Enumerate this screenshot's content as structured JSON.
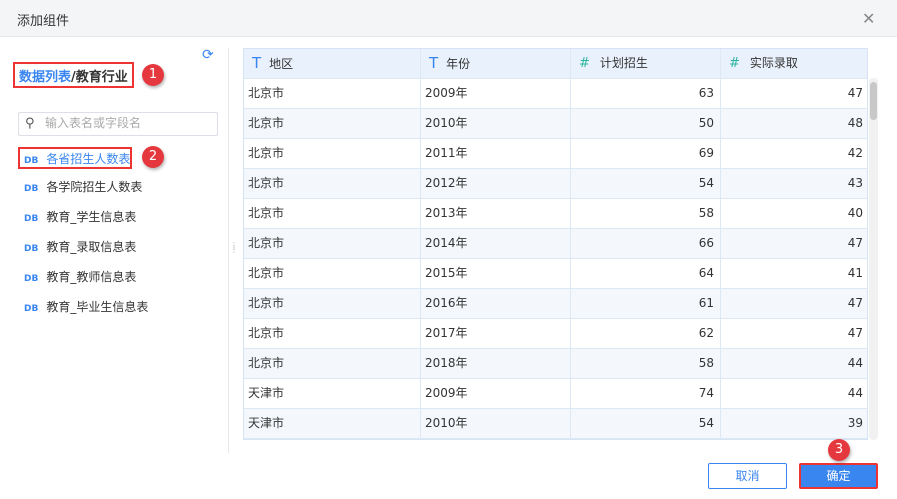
{
  "dialog": {
    "title": "添加组件",
    "close_icon": "close-icon"
  },
  "left": {
    "breadcrumb": {
      "root": "数据列表",
      "separator": "/",
      "current": "教育行业"
    },
    "search_placeholder": "输入表名或字段名",
    "tables": [
      {
        "type": "DB",
        "name": "各省招生人数表",
        "selected": true
      },
      {
        "type": "DB",
        "name": "各学院招生人数表"
      },
      {
        "type": "DB",
        "name": "教育_学生信息表"
      },
      {
        "type": "DB",
        "name": "教育_录取信息表"
      },
      {
        "type": "DB",
        "name": "教育_教师信息表"
      },
      {
        "type": "DB",
        "name": "教育_毕业生信息表"
      }
    ]
  },
  "annotations": [
    "1",
    "2",
    "3"
  ],
  "table": {
    "columns": [
      {
        "type_icon": "T",
        "label": "地区"
      },
      {
        "type_icon": "T",
        "label": "年份"
      },
      {
        "type_icon": "#",
        "label": "计划招生"
      },
      {
        "type_icon": "#",
        "label": "实际录取"
      }
    ],
    "rows": [
      [
        "北京市",
        "2009年",
        "63",
        "47"
      ],
      [
        "北京市",
        "2010年",
        "50",
        "48"
      ],
      [
        "北京市",
        "2011年",
        "69",
        "42"
      ],
      [
        "北京市",
        "2012年",
        "54",
        "43"
      ],
      [
        "北京市",
        "2013年",
        "58",
        "40"
      ],
      [
        "北京市",
        "2014年",
        "66",
        "47"
      ],
      [
        "北京市",
        "2015年",
        "64",
        "41"
      ],
      [
        "北京市",
        "2016年",
        "61",
        "47"
      ],
      [
        "北京市",
        "2017年",
        "62",
        "47"
      ],
      [
        "北京市",
        "2018年",
        "58",
        "44"
      ],
      [
        "天津市",
        "2009年",
        "74",
        "44"
      ],
      [
        "天津市",
        "2010年",
        "54",
        "39"
      ],
      [
        "",
        "",
        "",
        ""
      ]
    ]
  },
  "footer": {
    "cancel": "取消",
    "confirm": "确定"
  },
  "colors": {
    "accent": "#3a86f0",
    "highlight": "#e5383e",
    "row_alt": "#f4f8fd"
  }
}
